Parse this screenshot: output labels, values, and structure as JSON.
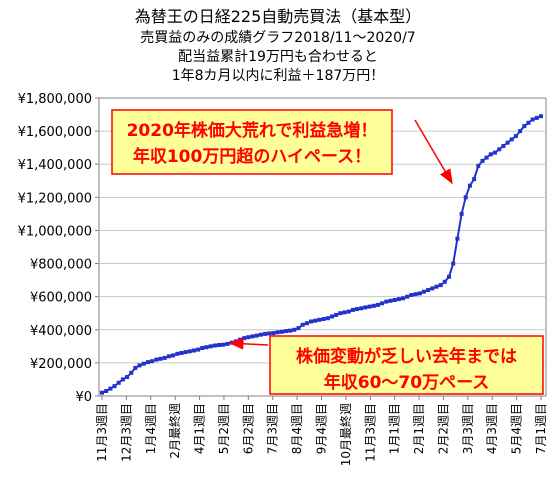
{
  "chart_data": {
    "type": "line",
    "title": "為替王の日経225自動売買法（基本型）",
    "subtitle_lines": [
      "売買益のみの成績グラフ2018/11～2020/7",
      "配当益累計19万円も合わせると",
      "1年8カ月以内に利益＋187万円！"
    ],
    "xlabel": "",
    "ylabel": "",
    "ylim": [
      0,
      1800000
    ],
    "yticks": [
      "¥1,800,000",
      "¥1,600,000",
      "¥1,400,000",
      "¥1,200,000",
      "¥1,000,000",
      "¥800,000",
      "¥600,000",
      "¥400,000",
      "¥200,000",
      "¥0"
    ],
    "ytick_values": [
      1800000,
      1600000,
      1400000,
      1200000,
      1000000,
      800000,
      600000,
      400000,
      200000,
      0
    ],
    "xticks": [
      "11月3週目",
      "12月3週目",
      "1月4週目",
      "2月最終週",
      "4月1週目",
      "5月2週目",
      "6月2週目",
      "7月3週目",
      "8月4週目",
      "9月4週目",
      "10月最終週",
      "11月3週目",
      "1月1週目",
      "2月1週目",
      "2月2週目",
      "3月3週目",
      "4月3週目",
      "5月4週目",
      "7月1週目"
    ],
    "grid": true,
    "legend": "none",
    "series": [
      {
        "color": "#2233cc",
        "values": [
          20000,
          30000,
          45000,
          60000,
          80000,
          100000,
          115000,
          140000,
          170000,
          185000,
          195000,
          205000,
          210000,
          220000,
          225000,
          230000,
          240000,
          245000,
          255000,
          260000,
          265000,
          270000,
          275000,
          280000,
          290000,
          295000,
          300000,
          305000,
          308000,
          310000,
          315000,
          322000,
          330000,
          340000,
          350000,
          355000,
          360000,
          365000,
          370000,
          375000,
          378000,
          380000,
          385000,
          388000,
          392000,
          395000,
          400000,
          410000,
          430000,
          440000,
          450000,
          455000,
          460000,
          465000,
          470000,
          480000,
          490000,
          500000,
          505000,
          510000,
          520000,
          525000,
          530000,
          535000,
          540000,
          545000,
          550000,
          560000,
          570000,
          575000,
          580000,
          585000,
          590000,
          600000,
          610000,
          615000,
          620000,
          630000,
          640000,
          650000,
          660000,
          670000,
          690000,
          720000,
          800000,
          950000,
          1100000,
          1200000,
          1270000,
          1310000,
          1390000,
          1420000,
          1440000,
          1460000,
          1470000,
          1490000,
          1510000,
          1530000,
          1550000,
          1570000,
          1600000,
          1630000,
          1650000,
          1670000,
          1680000,
          1690000
        ]
      }
    ],
    "annotations": [
      {
        "lines": [
          "2020年株価大荒れで利益急増！",
          "年収100万円超のハイペース！"
        ],
        "text_color": "#ff0000",
        "bg": "#ffff99",
        "border": "#ff0000"
      },
      {
        "lines": [
          "株価変動が乏しい去年までは",
          "年収60～70万ペース"
        ],
        "text_color": "#ff0000",
        "bg": "#ffff99",
        "border": "#ff0000"
      }
    ],
    "colors": {
      "line": "#2233cc",
      "marker": "#2233cc",
      "arrow": "#ff0000",
      "grid": "#c8c8c8",
      "plot_border": "#808080"
    }
  }
}
